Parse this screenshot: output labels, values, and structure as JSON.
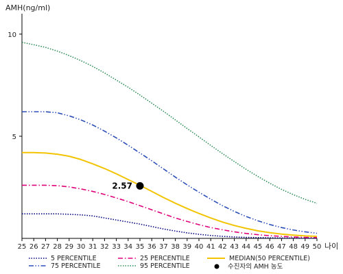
{
  "chart_data": {
    "type": "line",
    "ylabel": "AMH(ng/ml)",
    "xlabel": "나이",
    "xlim": [
      25,
      50
    ],
    "ylim": [
      0,
      11
    ],
    "x_ticks": [
      25,
      26,
      27,
      28,
      29,
      30,
      31,
      32,
      33,
      34,
      35,
      36,
      37,
      38,
      39,
      40,
      41,
      42,
      43,
      44,
      45,
      46,
      47,
      48,
      49,
      50
    ],
    "y_ticks": [
      5,
      10
    ],
    "grid": false,
    "legend_position": "bottom",
    "series": [
      {
        "name": "5 PERCENTILE",
        "color": "#000080",
        "style": "dotted",
        "x": [
          25,
          26,
          27,
          28,
          29,
          30,
          31,
          32,
          33,
          34,
          35,
          36,
          37,
          38,
          39,
          40,
          41,
          42,
          43,
          44,
          45,
          46,
          47,
          48,
          49,
          50
        ],
        "values": [
          1.2,
          1.2,
          1.2,
          1.2,
          1.18,
          1.15,
          1.1,
          1.0,
          0.9,
          0.8,
          0.7,
          0.58,
          0.46,
          0.36,
          0.27,
          0.2,
          0.14,
          0.1,
          0.07,
          0.05,
          0.04,
          0.03,
          0.02,
          0.02,
          0.01,
          0.01
        ]
      },
      {
        "name": "25 PERCENTILE",
        "color": "#e0007a",
        "style": "dashdot",
        "x": [
          25,
          26,
          27,
          28,
          29,
          30,
          31,
          32,
          33,
          34,
          35,
          36,
          37,
          38,
          39,
          40,
          41,
          42,
          43,
          44,
          45,
          46,
          47,
          48,
          49,
          50
        ],
        "values": [
          2.6,
          2.6,
          2.6,
          2.58,
          2.52,
          2.42,
          2.3,
          2.15,
          1.98,
          1.8,
          1.6,
          1.4,
          1.2,
          1.0,
          0.83,
          0.67,
          0.53,
          0.42,
          0.32,
          0.24,
          0.18,
          0.13,
          0.1,
          0.07,
          0.05,
          0.04
        ]
      },
      {
        "name": "MEDIAN(50 PERCENTILE)",
        "color": "#f2c400",
        "style": "solid",
        "x": [
          25,
          26,
          27,
          28,
          29,
          30,
          31,
          32,
          33,
          34,
          35,
          36,
          37,
          38,
          39,
          40,
          41,
          42,
          43,
          44,
          45,
          46,
          47,
          48,
          49,
          50
        ],
        "values": [
          4.2,
          4.2,
          4.18,
          4.12,
          4.02,
          3.86,
          3.65,
          3.42,
          3.16,
          2.88,
          2.6,
          2.3,
          2.0,
          1.72,
          1.46,
          1.22,
          1.0,
          0.8,
          0.63,
          0.49,
          0.37,
          0.28,
          0.21,
          0.16,
          0.12,
          0.1
        ]
      },
      {
        "name": "75 PERCENTILE",
        "color": "#2b4db8",
        "style": "dashdotdot",
        "x": [
          25,
          26,
          27,
          28,
          29,
          30,
          31,
          32,
          33,
          34,
          35,
          36,
          37,
          38,
          39,
          40,
          41,
          42,
          43,
          44,
          45,
          46,
          47,
          48,
          49,
          50
        ],
        "values": [
          6.2,
          6.2,
          6.2,
          6.15,
          6.0,
          5.8,
          5.55,
          5.25,
          4.92,
          4.56,
          4.18,
          3.8,
          3.4,
          3.0,
          2.62,
          2.26,
          1.92,
          1.6,
          1.32,
          1.07,
          0.86,
          0.68,
          0.53,
          0.41,
          0.32,
          0.25
        ]
      },
      {
        "name": "95 PERCENTILE",
        "color": "#2e8b57",
        "style": "dotted",
        "x": [
          25,
          26,
          27,
          28,
          29,
          30,
          31,
          32,
          33,
          34,
          35,
          36,
          37,
          38,
          39,
          40,
          41,
          42,
          43,
          44,
          45,
          46,
          47,
          48,
          49,
          50
        ],
        "values": [
          9.6,
          9.48,
          9.35,
          9.17,
          8.95,
          8.7,
          8.42,
          8.1,
          7.75,
          7.4,
          7.02,
          6.62,
          6.22,
          5.8,
          5.38,
          4.97,
          4.55,
          4.15,
          3.76,
          3.38,
          3.03,
          2.7,
          2.4,
          2.14,
          1.91,
          1.72
        ]
      }
    ],
    "points": [
      {
        "name": "수진자의 AMH 농도",
        "x": 35,
        "y": 2.57,
        "label": "2.57",
        "color": "#000000"
      }
    ]
  }
}
